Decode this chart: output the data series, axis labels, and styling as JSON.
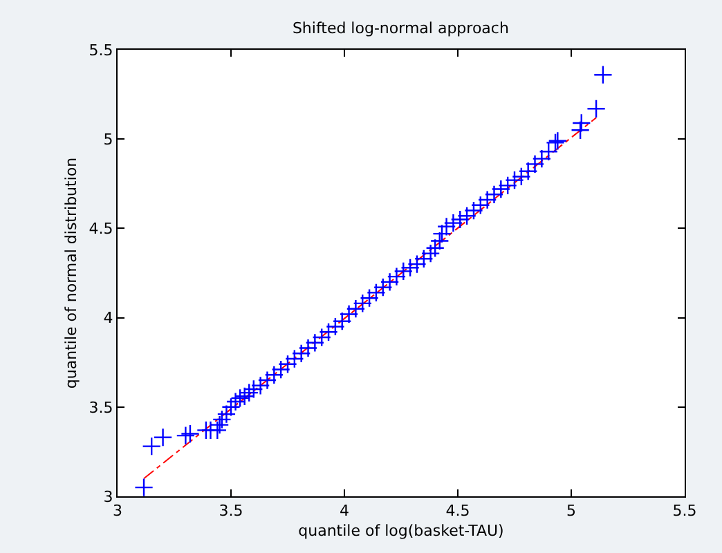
{
  "chart_data": {
    "type": "scatter",
    "title": "Shifted log-normal approach",
    "xlabel": "quantile of log(basket-TAU)",
    "ylabel": "quantile of normal distribution",
    "xlim": [
      3,
      5.5
    ],
    "ylim": [
      3,
      5.5
    ],
    "xticks": [
      3,
      3.5,
      4,
      4.5,
      5,
      5.5
    ],
    "yticks": [
      3,
      3.5,
      4,
      4.5,
      5,
      5.5
    ],
    "grid": false,
    "legend": false,
    "marker": "cross",
    "series": [
      {
        "type": "line",
        "color": "#ff0000",
        "line_style": "dashed",
        "marker": "none",
        "x": [
          3.116,
          5.11
        ],
        "values": [
          3.1,
          5.12
        ]
      },
      {
        "color": "#0000ff",
        "x": [
          3.116,
          3.15,
          3.2,
          3.3,
          3.32,
          3.39,
          3.41,
          3.44,
          3.45,
          3.46,
          3.48,
          3.5,
          3.52,
          3.54,
          3.56,
          3.58,
          3.6,
          3.63,
          3.66,
          3.69,
          3.72,
          3.75,
          3.78,
          3.81,
          3.84,
          3.87,
          3.9,
          3.93,
          3.96,
          3.99,
          4.02,
          4.05,
          4.08,
          4.11,
          4.14,
          4.17,
          4.2,
          4.23,
          4.26,
          4.29,
          4.32,
          4.35,
          4.38,
          4.4,
          4.42,
          4.43,
          4.45,
          4.48,
          4.51,
          4.54,
          4.57,
          4.6,
          4.63,
          4.66,
          4.69,
          4.72,
          4.75,
          4.78,
          4.81,
          4.84,
          4.87,
          4.9,
          4.93,
          4.94,
          5.04,
          5.045,
          5.11,
          5.14
        ],
        "values": [
          3.05,
          3.28,
          3.33,
          3.34,
          3.35,
          3.37,
          3.37,
          3.37,
          3.4,
          3.43,
          3.46,
          3.5,
          3.53,
          3.55,
          3.56,
          3.58,
          3.6,
          3.62,
          3.65,
          3.68,
          3.71,
          3.74,
          3.77,
          3.8,
          3.83,
          3.86,
          3.89,
          3.92,
          3.95,
          3.98,
          4.02,
          4.05,
          4.08,
          4.11,
          4.14,
          4.17,
          4.2,
          4.23,
          4.26,
          4.28,
          4.3,
          4.33,
          4.36,
          4.39,
          4.43,
          4.47,
          4.51,
          4.53,
          4.55,
          4.57,
          4.6,
          4.63,
          4.66,
          4.69,
          4.72,
          4.74,
          4.77,
          4.79,
          4.82,
          4.86,
          4.89,
          4.93,
          4.98,
          4.99,
          5.05,
          5.09,
          5.17,
          5.36
        ]
      }
    ]
  }
}
